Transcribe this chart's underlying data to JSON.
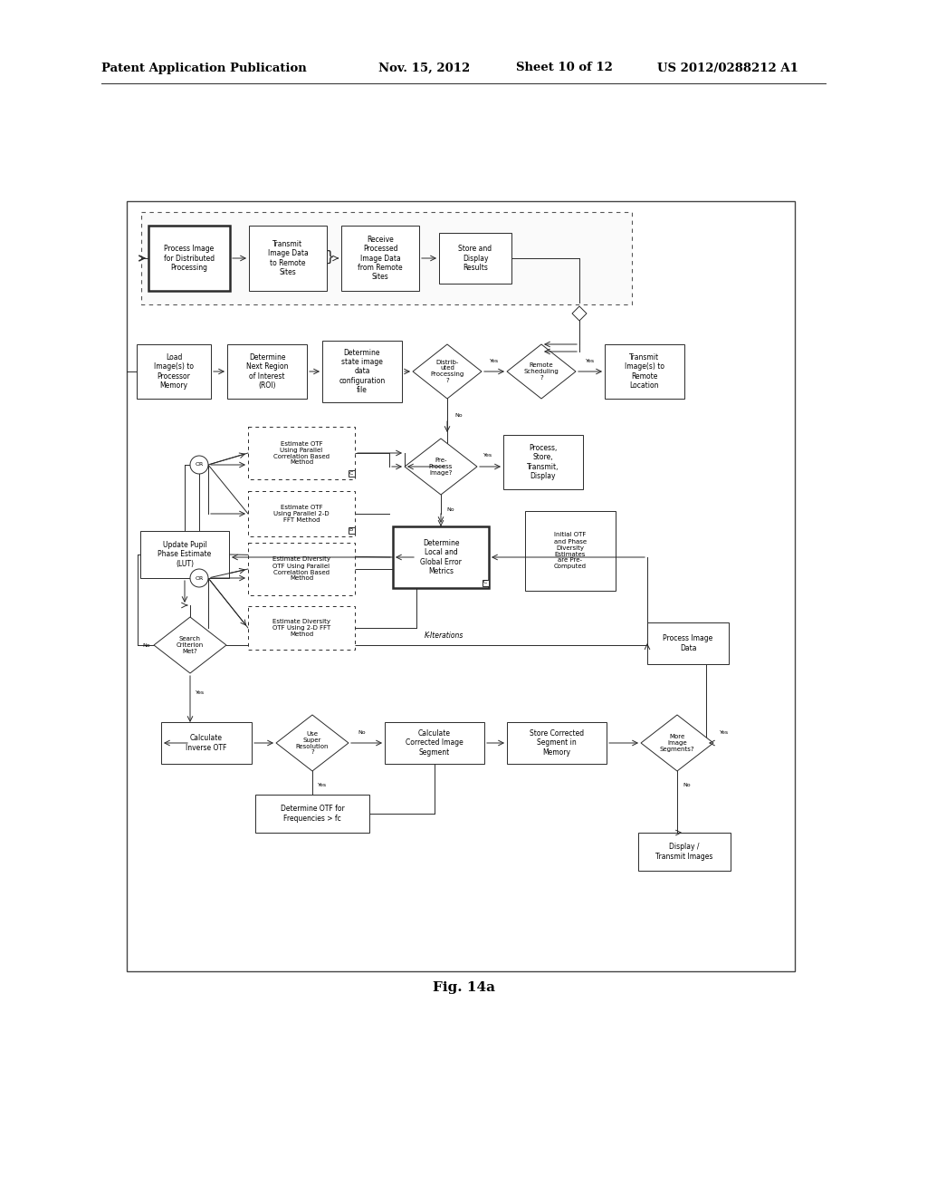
{
  "background_color": "#ffffff",
  "header_text": "Patent Application Publication",
  "header_date": "Nov. 15, 2012",
  "header_sheet": "Sheet 10 of 12",
  "header_patent": "US 2012/0288212 A1",
  "caption": "Fig. 14a"
}
